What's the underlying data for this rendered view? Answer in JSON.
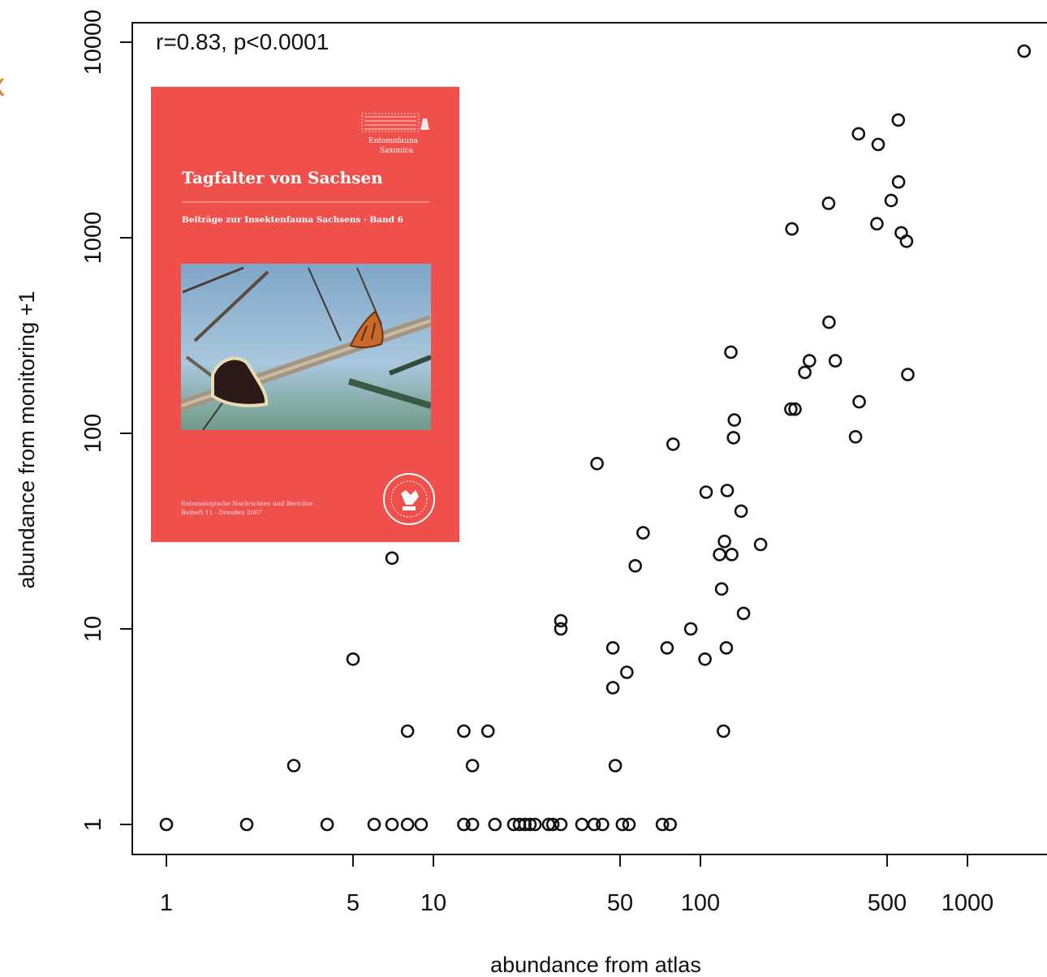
{
  "edge_mark": "x",
  "chart_data": {
    "type": "scatter",
    "title": "",
    "annotation": "r=0.83, p<0.0001",
    "xlabel": "abundance from atlas",
    "ylabel": "abundance from monitoring +1",
    "xscale": "log",
    "yscale": "log",
    "xlim": [
      0.78,
      2450
    ],
    "ylim": [
      0.7,
      12000
    ],
    "x_ticks": [
      1,
      5,
      10,
      50,
      100,
      500,
      1000
    ],
    "x_tick_labels": [
      "1",
      "5",
      "10",
      "50",
      "100",
      "500",
      "1000"
    ],
    "y_ticks": [
      1,
      10,
      100,
      1000,
      10000
    ],
    "y_tick_labels": [
      "1",
      "10",
      "100",
      "1000",
      "10000"
    ],
    "grid": false,
    "legend": "none",
    "marker": "open-circle",
    "points": [
      [
        1,
        1
      ],
      [
        2,
        1
      ],
      [
        4,
        1
      ],
      [
        6,
        1
      ],
      [
        7,
        1
      ],
      [
        8,
        1
      ],
      [
        9,
        1
      ],
      [
        13,
        1
      ],
      [
        14,
        1
      ],
      [
        17,
        1
      ],
      [
        20,
        1
      ],
      [
        21,
        1
      ],
      [
        22,
        1
      ],
      [
        23,
        1
      ],
      [
        24,
        1
      ],
      [
        27,
        1
      ],
      [
        28,
        1
      ],
      [
        30,
        1
      ],
      [
        36,
        1
      ],
      [
        40,
        1
      ],
      [
        43,
        1
      ],
      [
        51,
        1
      ],
      [
        54,
        1
      ],
      [
        72,
        1
      ],
      [
        77,
        1
      ],
      [
        3,
        2
      ],
      [
        14,
        2
      ],
      [
        48,
        2
      ],
      [
        8,
        3
      ],
      [
        13,
        3
      ],
      [
        16,
        3
      ],
      [
        122,
        3
      ],
      [
        47,
        5
      ],
      [
        53,
        6
      ],
      [
        5,
        7
      ],
      [
        104,
        7
      ],
      [
        47,
        8
      ],
      [
        75,
        8
      ],
      [
        125,
        8
      ],
      [
        30,
        10
      ],
      [
        92,
        10
      ],
      [
        30,
        11
      ],
      [
        120,
        16
      ],
      [
        57,
        21
      ],
      [
        7,
        23
      ],
      [
        118,
        24
      ],
      [
        131,
        24
      ],
      [
        123,
        28
      ],
      [
        61,
        31
      ],
      [
        168,
        27
      ],
      [
        145,
        12
      ],
      [
        142,
        40
      ],
      [
        105,
        50
      ],
      [
        126,
        51
      ],
      [
        41,
        70
      ],
      [
        79,
        88
      ],
      [
        133,
        95
      ],
      [
        134,
        117
      ],
      [
        130,
        260
      ],
      [
        218,
        133
      ],
      [
        226,
        133
      ],
      [
        381,
        96
      ],
      [
        393,
        145
      ],
      [
        246,
        205
      ],
      [
        256,
        235
      ],
      [
        320,
        235
      ],
      [
        598,
        200
      ],
      [
        303,
        370
      ],
      [
        220,
        1110
      ],
      [
        302,
        1500
      ],
      [
        458,
        1180
      ],
      [
        518,
        1550
      ],
      [
        565,
        1060
      ],
      [
        591,
        960
      ],
      [
        552,
        1930
      ],
      [
        463,
        3000
      ],
      [
        391,
        3400
      ],
      [
        551,
        4000
      ],
      [
        1630,
        9000
      ]
    ]
  },
  "inset_book_cover": {
    "title": "Tagfalter von Sachsen",
    "subtitle": "Beiträge zur Insektenfauna Sachsens · Band 6",
    "footer_line1": "Entomologische Nachrichten und Berichte",
    "footer_line2": "Beiheft 11 · Dresden 2007",
    "logo_line1": "Entomofauna",
    "logo_line2": "Saxonica",
    "colors": {
      "cover": "#f0504c",
      "sky": "#8fb6d8",
      "branch": "#8a7a66"
    }
  }
}
